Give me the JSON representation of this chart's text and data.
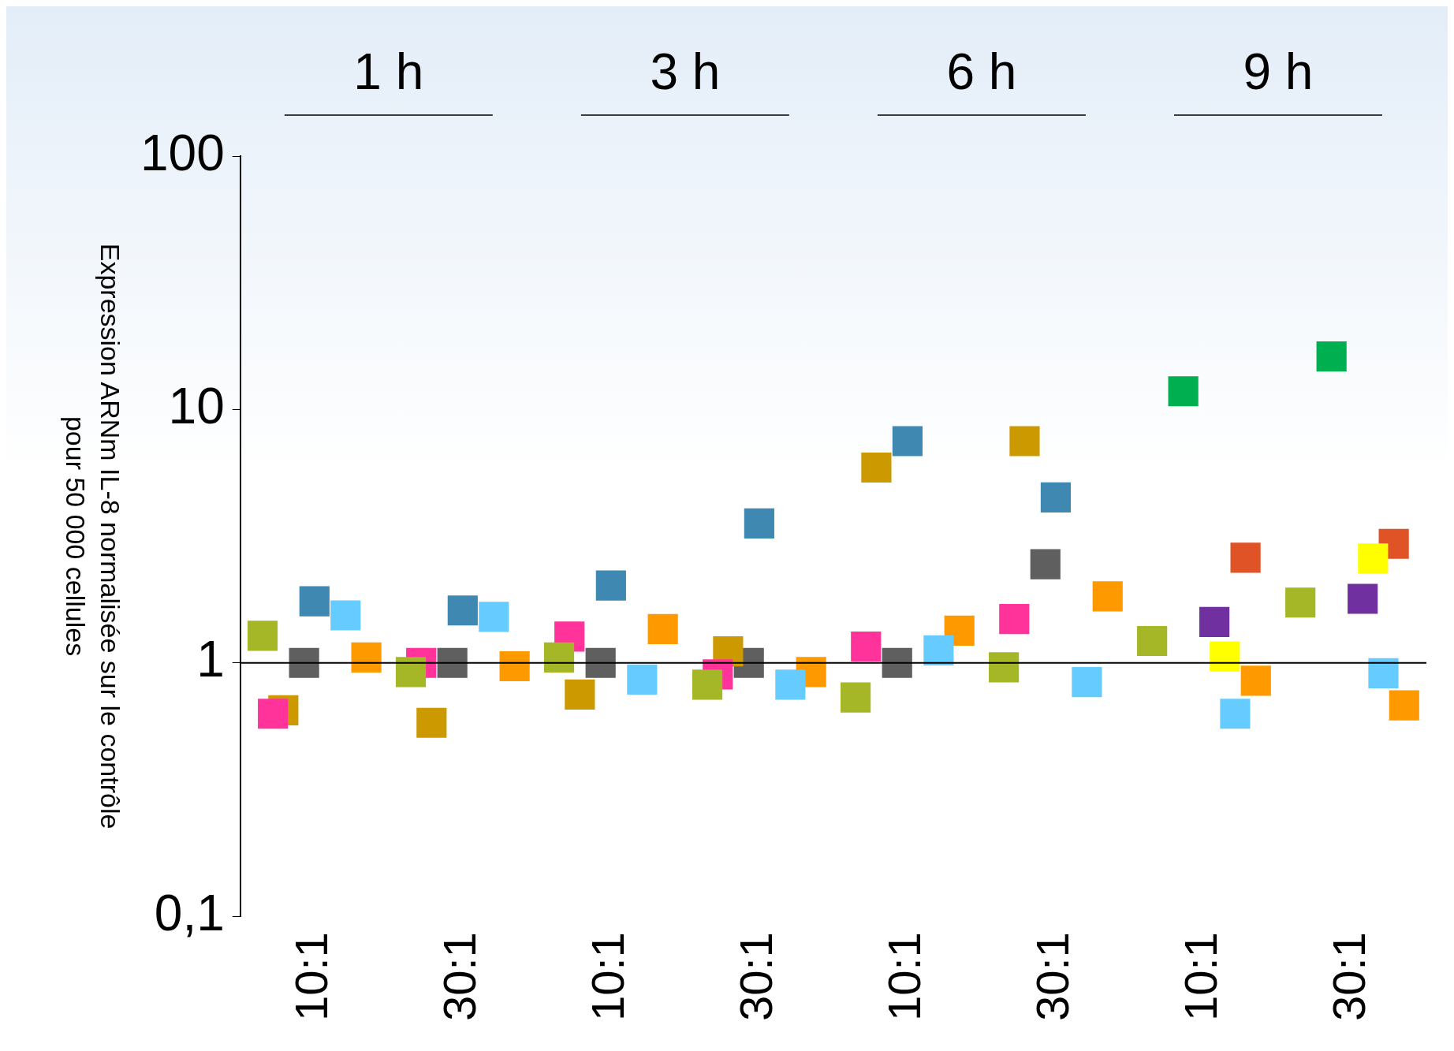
{
  "chart_data": {
    "type": "scatter",
    "ylabel": "Expression ARNm IL-8 normalisée sur le contrôle\npour 50 000 cellules",
    "log": "y",
    "marker": "square",
    "grid": false,
    "legend": false,
    "categories": [
      "10:1",
      "30:1",
      "10:1",
      "30:1",
      "10:1",
      "30:1",
      "10:1",
      "30:1"
    ],
    "ylim": [
      0.1,
      100
    ],
    "yticks": [
      {
        "value": 0.1,
        "label": "0,1"
      },
      1,
      10,
      100
    ],
    "ref_lines": [
      {
        "axis": "y",
        "value": 1,
        "color": "#000000"
      }
    ],
    "annotations": [
      "1 h",
      "3 h",
      "6 h",
      "9 h"
    ],
    "series": [
      {
        "color": "#a5b626",
        "values": [
          1.28,
          0.92,
          1.05,
          0.82,
          0.73,
          0.96,
          1.22,
          1.73
        ]
      },
      {
        "color": "#ff3399",
        "values": [
          0.63,
          1.0,
          1.27,
          0.9,
          1.16,
          1.49,
          null,
          null
        ]
      },
      {
        "color": "#cc9900",
        "values": [
          0.65,
          0.58,
          0.75,
          1.11,
          5.9,
          7.5,
          null,
          null
        ]
      },
      {
        "color": "#00b050",
        "values": [
          null,
          null,
          null,
          null,
          null,
          null,
          11.8,
          16.2
        ]
      },
      {
        "color": "#5f5f5f",
        "values": [
          1.0,
          1.0,
          1.0,
          1.0,
          1.0,
          2.45,
          null,
          null
        ]
      },
      {
        "color": "#3f88b2",
        "values": [
          1.75,
          1.61,
          2.02,
          3.55,
          7.5,
          4.5,
          null,
          null
        ]
      },
      {
        "color": "#7030a0",
        "values": [
          null,
          null,
          null,
          null,
          null,
          null,
          1.45,
          1.79
        ]
      },
      {
        "color": "#ffff00",
        "values": [
          null,
          null,
          null,
          null,
          null,
          null,
          1.06,
          2.58
        ]
      },
      {
        "color": "#66ccff",
        "values": [
          1.54,
          1.52,
          0.86,
          0.82,
          1.12,
          0.84,
          0.63,
          0.91
        ]
      },
      {
        "color": "#e05326",
        "values": [
          null,
          null,
          null,
          null,
          null,
          null,
          2.6,
          2.95
        ]
      },
      {
        "color": "#ff9900",
        "values": [
          1.05,
          0.97,
          1.36,
          0.92,
          1.34,
          1.83,
          0.85,
          0.68
        ]
      }
    ]
  }
}
